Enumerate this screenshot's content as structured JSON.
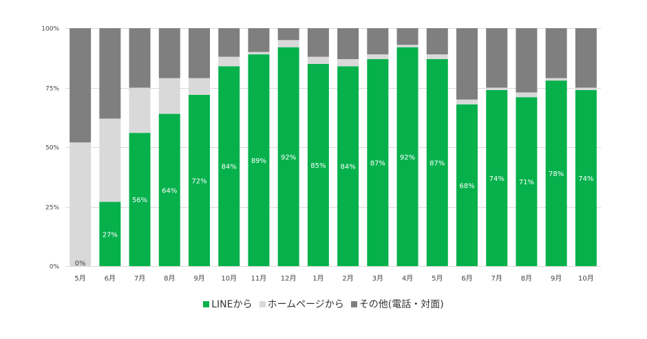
{
  "chart_data": {
    "type": "bar",
    "stacked": true,
    "title": "",
    "xlabel": "",
    "ylabel": "",
    "ylim": [
      0,
      100
    ],
    "y_ticks": [
      "0%",
      "25%",
      "50%",
      "75%",
      "100%"
    ],
    "y_tick_values": [
      0,
      25,
      50,
      75,
      100
    ],
    "grid": true,
    "legend_position": "bottom",
    "categories": [
      "5月",
      "6月",
      "7月",
      "8月",
      "9月",
      "10月",
      "11月",
      "12月",
      "1月",
      "2月",
      "3月",
      "4月",
      "5月",
      "6月",
      "7月",
      "8月",
      "9月",
      "10月"
    ],
    "series": [
      {
        "name": "LINEから",
        "color": "#06b14c",
        "values": [
          0,
          27,
          56,
          64,
          72,
          84,
          89,
          92,
          85,
          84,
          87,
          92,
          87,
          68,
          74,
          71,
          78,
          74
        ],
        "labels": [
          "0%",
          "27%",
          "56%",
          "64%",
          "72%",
          "84%",
          "89%",
          "92%",
          "85%",
          "84%",
          "87%",
          "92%",
          "87%",
          "68%",
          "74%",
          "71%",
          "78%",
          "74%"
        ]
      },
      {
        "name": "ホームページから",
        "color": "#d9d9d9",
        "values": [
          52,
          35,
          19,
          15,
          7,
          4,
          1,
          3,
          3,
          3,
          2,
          1,
          2,
          2,
          1,
          2,
          1,
          1
        ]
      },
      {
        "name": "その他(電話・対面)",
        "color": "#7f7f7f",
        "values": [
          48,
          38,
          25,
          21,
          21,
          12,
          10,
          5,
          12,
          13,
          11,
          7,
          11,
          30,
          25,
          27,
          21,
          25
        ]
      }
    ]
  }
}
